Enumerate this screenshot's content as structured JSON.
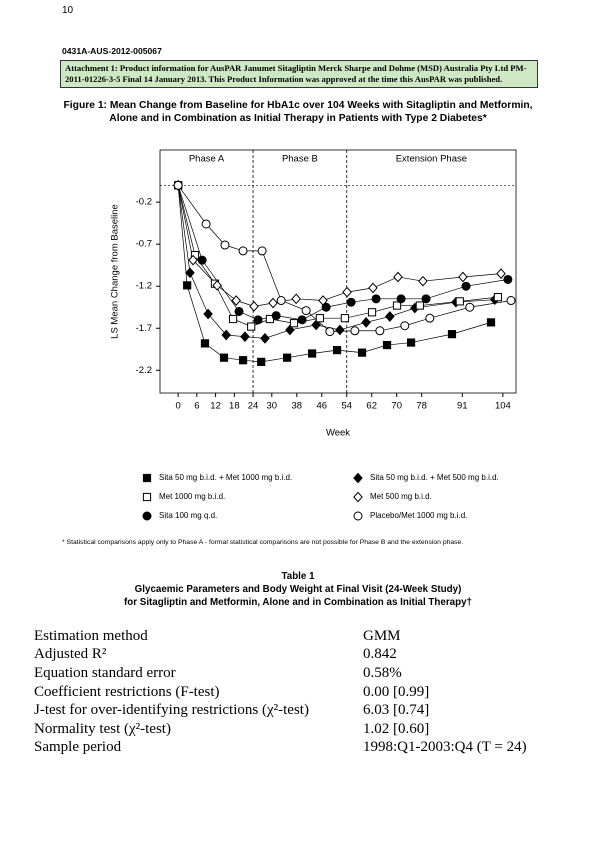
{
  "header": {
    "page": "10",
    "doc_id": "0431A-AUS-2012-005067",
    "attachment": "Attachment 1: Product information for AusPAR Janumet Sitagliptin Merck Sharpe and Dohme (MSD) Australia Pty Ltd PM-2011-01226-3-5 Final 14 January 2013. This Product Information was approved at the time this AusPAR was published."
  },
  "figure_title": "Figure 1: Mean Change from Baseline for HbA1c over 104 Weeks with Sitagliptin and Metformin, Alone and in Combination as Initial Therapy in Patients with Type 2 Diabetes*",
  "chart_data": {
    "type": "line",
    "x_label": "Week",
    "y_label": "LS Mean Change from Baseline",
    "phases": [
      "Phase A",
      "Phase B",
      "Extension Phase"
    ],
    "phase_boundaries": [
      24,
      54
    ],
    "reference_y": 0,
    "xlim": [
      -5.8,
      108.2
    ],
    "ylim": [
      -2.47,
      0.42
    ],
    "xticks": [
      0,
      6,
      12,
      18,
      24,
      30,
      38,
      46,
      54,
      62,
      70,
      78,
      91,
      104
    ],
    "yticks": [
      -0.2,
      -0.7,
      -1.2,
      -1.7,
      -2.2
    ],
    "series": [
      {
        "name": "Sita 50 mg b.i.d. + Met 1000 mg b.i.d.",
        "marker": "square",
        "color": "#000000",
        "x": [
          0,
          2.9,
          8.6,
          14.7,
          20.8,
          26.6,
          34.9,
          42.9,
          50.9,
          58.9,
          66.9,
          74.6,
          87.7,
          100.2
        ],
        "values": [
          0,
          -1.19,
          -1.88,
          -2.05,
          -2.08,
          -2.1,
          -2.05,
          -2.0,
          -1.96,
          -1.99,
          -1.9,
          -1.87,
          -1.77,
          -1.63
        ]
      },
      {
        "name": "Sita 50 mg b.i.d. + Met 500 mg b.i.d.",
        "marker": "diamond",
        "color": "#000000",
        "x": [
          0,
          3.8,
          9.6,
          15.4,
          21.4,
          27.8,
          35.8,
          44.2,
          51.8,
          60.2,
          67.8,
          75.8,
          88.96,
          101.4
        ],
        "values": [
          0,
          -1.04,
          -1.53,
          -1.78,
          -1.8,
          -1.82,
          -1.72,
          -1.66,
          -1.72,
          -1.63,
          -1.56,
          -1.46,
          -1.39,
          -1.36
        ]
      },
      {
        "name": "Met 1000 mg b.i.d.",
        "marker": "square-open",
        "color": "#000000",
        "x": [
          0,
          5.4,
          11.8,
          17.6,
          23.4,
          29.4,
          37.1,
          45.4,
          53.4,
          62.1,
          70.1,
          77.4,
          90.2,
          102.4
        ],
        "values": [
          0,
          -0.83,
          -1.17,
          -1.59,
          -1.68,
          -1.59,
          -1.64,
          -1.58,
          -1.58,
          -1.51,
          -1.43,
          -1.43,
          -1.38,
          -1.33
        ]
      },
      {
        "name": "Met 500 mg b.i.d.",
        "marker": "diamond-open",
        "color": "#000000",
        "x": [
          0,
          4.8,
          12.5,
          18.6,
          24.3,
          30.4,
          37.8,
          46.4,
          54.1,
          62.4,
          70.4,
          78.4,
          91.2,
          103.4
        ],
        "values": [
          0,
          -0.89,
          -1.19,
          -1.37,
          -1.44,
          -1.4,
          -1.35,
          -1.37,
          -1.27,
          -1.22,
          -1.09,
          -1.14,
          -1.09,
          -1.05
        ]
      },
      {
        "name": "Sita 100 mg q.d.",
        "marker": "circle",
        "color": "#000000",
        "x": [
          0,
          7.7,
          19.5,
          25.6,
          31.4,
          39.7,
          47.4,
          55.4,
          63.4,
          71.4,
          79.4,
          92.2,
          105.6
        ],
        "values": [
          0,
          -0.89,
          -1.5,
          -1.6,
          -1.55,
          -1.6,
          -1.45,
          -1.39,
          -1.35,
          -1.35,
          -1.35,
          -1.2,
          -1.12
        ]
      },
      {
        "name": "Placebo/Met 1000 mg b.i.d.",
        "marker": "circle-open",
        "color": "#000000",
        "x": [
          0,
          8.96,
          15,
          20.8,
          26.9,
          33,
          41,
          48.6,
          56.6,
          64.6,
          72.6,
          80.6,
          93.4,
          106.6
        ],
        "values": [
          0,
          -0.46,
          -0.71,
          -0.78,
          -0.78,
          -1.37,
          -1.49,
          -1.74,
          -1.73,
          -1.73,
          -1.67,
          -1.58,
          -1.45,
          -1.37
        ]
      }
    ]
  },
  "footnote": "* Statistical comparisons apply only to Phase A - formal statistical comparisons are not possible for Phase B and the extension phase.",
  "table_title": [
    "Table 1",
    "Glycaemic Parameters and Body Weight at Final Visit (24-Week Study)",
    "for Sitagliptin and Metformin, Alone and in Combination as Initial Therapy†"
  ],
  "table": {
    "rows": [
      [
        "Estimation method",
        "GMM"
      ],
      [
        "Adjusted R²",
        "0.842"
      ],
      [
        "Equation standard error",
        "0.58%"
      ],
      [
        "Coefficient restrictions (F-test)",
        "0.00 [0.99]"
      ],
      [
        "J-test for over-identifying restrictions (χ²-test)",
        "6.03 [0.74]"
      ],
      [
        "Normality test (χ²-test)",
        "1.02 [0.60]"
      ],
      [
        "Sample period",
        "1998:Q1-2003:Q4 (T = 24)"
      ]
    ]
  }
}
